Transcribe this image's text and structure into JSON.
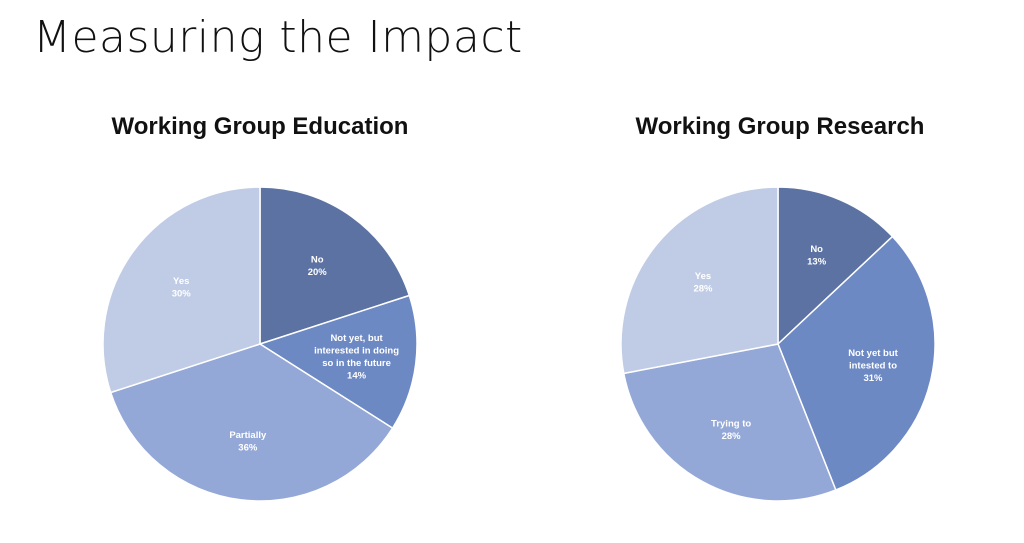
{
  "slide": {
    "title": "Measuring the Impact"
  },
  "chart_data": [
    {
      "type": "pie",
      "title": "Working Group Education",
      "start_angle_deg": 0,
      "direction": "clockwise",
      "slices": [
        {
          "label_lines": [
            "No"
          ],
          "value": 20,
          "value_label": "20%",
          "color": "#5B72A3"
        },
        {
          "label_lines": [
            "Not yet, but",
            "interested in doing",
            "so in the future"
          ],
          "value": 14,
          "value_label": "14%",
          "color": "#6D89C4"
        },
        {
          "label_lines": [
            "Partially"
          ],
          "value": 36,
          "value_label": "36%",
          "color": "#94A8D7"
        },
        {
          "label_lines": [
            "Yes"
          ],
          "value": 30,
          "value_label": "30%",
          "color": "#C0CCE5"
        }
      ]
    },
    {
      "type": "pie",
      "title": "Working Group Research",
      "start_angle_deg": 0,
      "direction": "clockwise",
      "slices": [
        {
          "label_lines": [
            "No"
          ],
          "value": 13,
          "value_label": "13%",
          "color": "#5B72A3"
        },
        {
          "label_lines": [
            "Not yet but",
            "intested to"
          ],
          "value": 31,
          "value_label": "31%",
          "color": "#6D89C4"
        },
        {
          "label_lines": [
            "Trying to"
          ],
          "value": 28,
          "value_label": "28%",
          "color": "#94A8D7"
        },
        {
          "label_lines": [
            "Yes"
          ],
          "value": 28,
          "value_label": "28%",
          "color": "#C0CCE5"
        }
      ]
    }
  ]
}
